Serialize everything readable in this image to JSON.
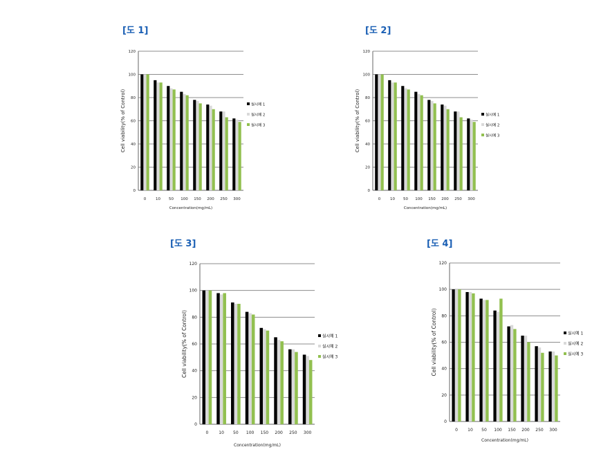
{
  "colors": {
    "series1": "#000000",
    "series2": "#d9d9d9",
    "series3": "#92c050",
    "grid": "#8c8c8c",
    "axis": "#666666",
    "title": "#1a5fb4"
  },
  "chart_data": [
    {
      "fig_label": "[도 1]",
      "type": "bar",
      "categories": [
        "0",
        "10",
        "50",
        "100",
        "150",
        "200",
        "250",
        "300"
      ],
      "series": [
        {
          "name": "실시예 1",
          "values": [
            100,
            95,
            90,
            85,
            78,
            74,
            68,
            62
          ]
        },
        {
          "name": "실시예 2",
          "values": [
            100,
            93,
            88,
            83,
            77,
            73,
            68,
            61
          ]
        },
        {
          "name": "실시예 3",
          "values": [
            100,
            93,
            87,
            82,
            75,
            70,
            63,
            59
          ]
        }
      ],
      "xlabel": "Concentration(mg/mL)",
      "ylabel": "Cell viability(% of Control)",
      "ylim": [
        0,
        120
      ],
      "yticks": [
        "0",
        "20",
        "40",
        "60",
        "80",
        "100",
        "120"
      ],
      "grid": true,
      "legend": "right"
    },
    {
      "fig_label": "[도 2]",
      "type": "bar",
      "categories": [
        "0",
        "10",
        "50",
        "100",
        "150",
        "200",
        "250",
        "300"
      ],
      "series": [
        {
          "name": "실시예 1",
          "values": [
            100,
            95,
            90,
            85,
            78,
            74,
            68,
            62
          ]
        },
        {
          "name": "실시예 2",
          "values": [
            100,
            93,
            88,
            83,
            77,
            73,
            68,
            61
          ]
        },
        {
          "name": "실시예 3",
          "values": [
            100,
            93,
            87,
            82,
            75,
            70,
            63,
            59
          ]
        }
      ],
      "xlabel": "Concentration(mg/mL)",
      "ylabel": "Cell viability(% of Control)",
      "ylim": [
        0,
        120
      ],
      "yticks": [
        "0",
        "20",
        "40",
        "60",
        "80",
        "100",
        "120"
      ],
      "grid": true,
      "legend": "right"
    },
    {
      "fig_label": "[도 3]",
      "type": "bar",
      "categories": [
        "0",
        "10",
        "50",
        "100",
        "150",
        "200",
        "250",
        "300"
      ],
      "series": [
        {
          "name": "실시예 1",
          "values": [
            100,
            98,
            91,
            84,
            72,
            65,
            56,
            52
          ]
        },
        {
          "name": "실시예 2",
          "values": [
            100,
            97,
            90,
            83,
            71,
            63,
            56,
            51
          ]
        },
        {
          "name": "실시예 3",
          "values": [
            100,
            98,
            90,
            82,
            70,
            62,
            54,
            48
          ]
        }
      ],
      "xlabel": "Concentration(mg/mL)",
      "ylabel": "Cell viability(% of Control)",
      "ylim": [
        0,
        120
      ],
      "yticks": [
        "0",
        "20",
        "40",
        "60",
        "80",
        "100",
        "120"
      ],
      "grid": true,
      "legend": "right"
    },
    {
      "fig_label": "[도 4]",
      "type": "bar",
      "categories": [
        "0",
        "10",
        "50",
        "100",
        "150",
        "200",
        "250",
        "300"
      ],
      "series": [
        {
          "name": "실시예 1",
          "values": [
            100,
            98,
            93,
            84,
            72,
            65,
            57,
            53
          ]
        },
        {
          "name": "실시예 2",
          "values": [
            100,
            98,
            92,
            83,
            73,
            65,
            56,
            53
          ]
        },
        {
          "name": "실시예 3",
          "values": [
            100,
            97,
            92,
            93,
            70,
            60,
            52,
            50
          ]
        }
      ],
      "xlabel": "Concentration(mg/mL)",
      "ylabel": "Cell viability(% of Control)",
      "ylim": [
        0,
        120
      ],
      "yticks": [
        "0",
        "20",
        "40",
        "60",
        "80",
        "100",
        "120"
      ],
      "grid": true,
      "legend": "right"
    }
  ]
}
